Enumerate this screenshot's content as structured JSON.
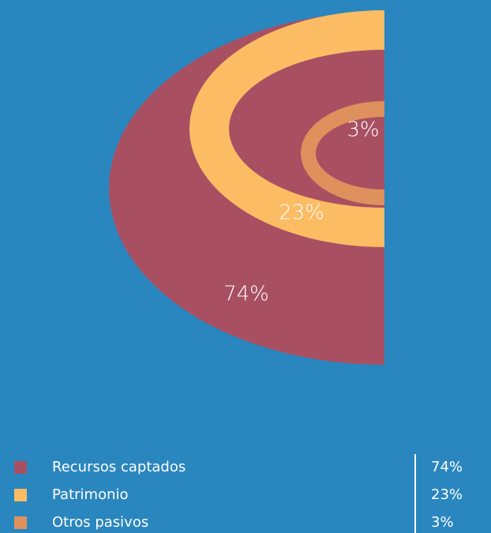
{
  "chart_data": {
    "type": "pie",
    "categories": [
      "Recursos captados",
      "Patrimonio",
      "Otros pasivos"
    ],
    "values": [
      74,
      23,
      3
    ],
    "value_labels": [
      "74%",
      "23%",
      "3%"
    ],
    "colors": [
      "#a84f62",
      "#fcbc64",
      "#de915c"
    ]
  }
}
